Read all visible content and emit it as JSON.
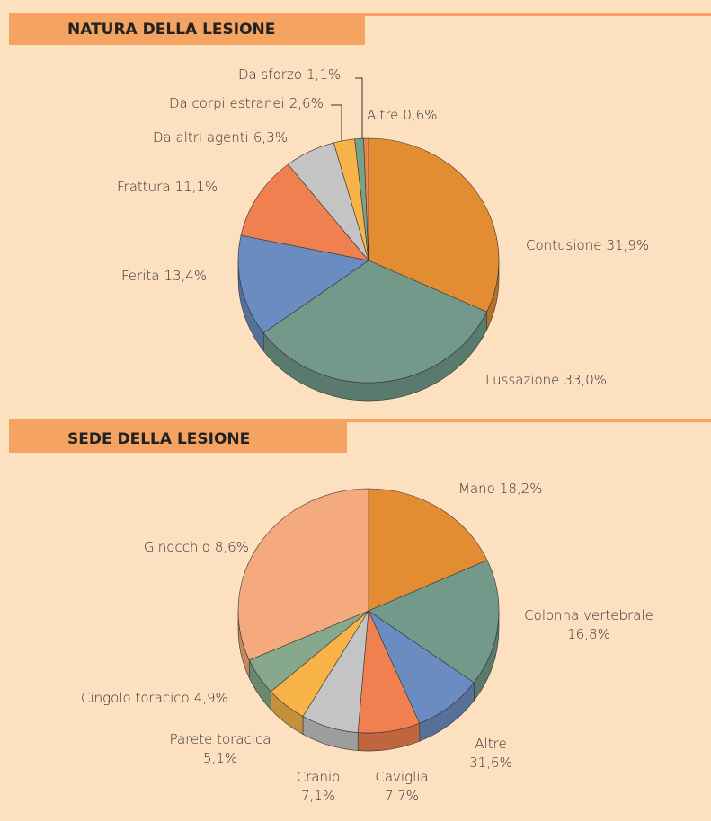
{
  "chart_data": [
    {
      "type": "pie",
      "title": "NATURA DELLA LESIONE",
      "categories": [
        "Contusione",
        "Lussazione",
        "Ferita",
        "Frattura",
        "Da altri agenti",
        "Da corpi estranei",
        "Da sforzo",
        "Altre"
      ],
      "values": [
        31.9,
        33.0,
        13.4,
        11.1,
        6.3,
        2.6,
        1.1,
        0.6
      ],
      "value_labels": [
        "31,9%",
        "33,0%",
        "13,4%",
        "11,1%",
        "6,3%",
        "2,6%",
        "1,1%",
        "0,6%"
      ],
      "colors": [
        "#e38d33",
        "#72998a",
        "#6b8cc0",
        "#f0804f",
        "#c4c4c4",
        "#f7b347",
        "#7aa08a",
        "#e8894a"
      ]
    },
    {
      "type": "pie",
      "title": "SEDE DELLA LESIONE",
      "categories": [
        "Mano",
        "Colonna vertebrale",
        "Ginocchio",
        "Caviglia",
        "Cranio",
        "Parete toracica",
        "Cingolo toracico",
        "Altre"
      ],
      "values": [
        18.2,
        16.8,
        8.6,
        7.7,
        7.1,
        5.1,
        4.9,
        31.6
      ],
      "value_labels": [
        "18,2%",
        "16,8%",
        "8,6%",
        "7,7%",
        "7,1%",
        "5,1%",
        "4,9%",
        "31,6%"
      ],
      "colors": [
        "#e38d33",
        "#72998a",
        "#6b8cc0",
        "#f0804f",
        "#c4c4c4",
        "#f7b347",
        "#86a98c",
        "#f5aa7e"
      ]
    }
  ]
}
